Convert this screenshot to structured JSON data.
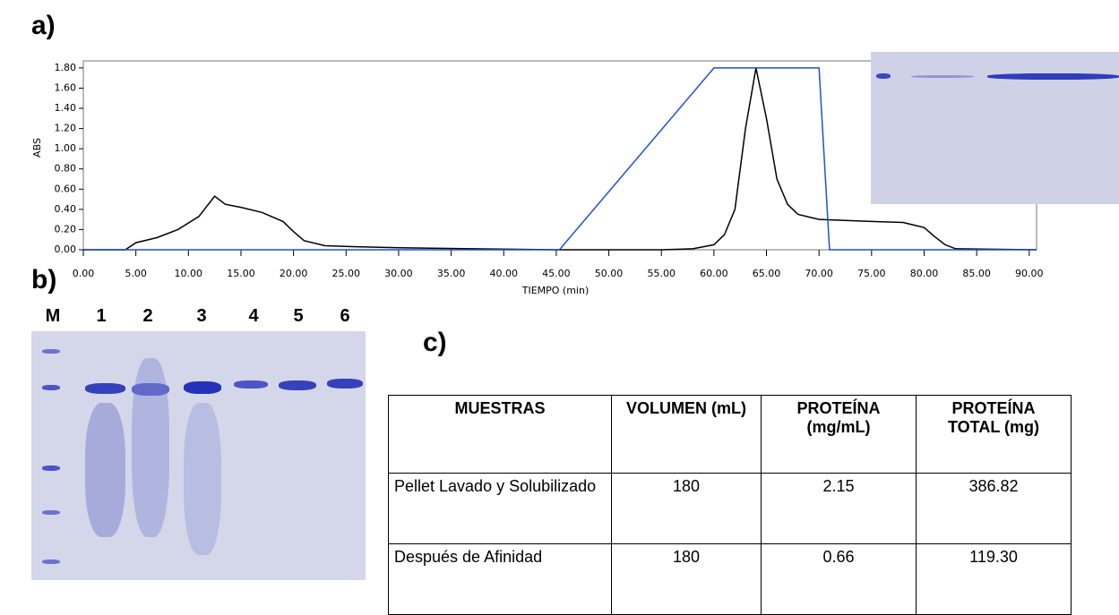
{
  "panels": {
    "a": "a)",
    "b": "b)",
    "c": "c)"
  },
  "chart_data": {
    "type": "line",
    "x_label": "TIEMPO (min)",
    "y_label": "ABS",
    "series": [
      {
        "color": "#000000",
        "x": [
          0,
          4,
          5,
          7,
          9,
          11,
          12.5,
          13.5,
          15,
          17,
          19,
          20,
          21,
          23,
          26,
          30,
          37,
          45,
          55,
          58,
          60,
          61,
          62,
          63,
          64,
          65,
          66,
          67,
          68,
          70,
          75,
          78,
          80,
          81,
          82,
          83,
          90.7
        ],
        "values": [
          0,
          0,
          0.07,
          0.12,
          0.2,
          0.33,
          0.53,
          0.45,
          0.42,
          0.37,
          0.28,
          0.18,
          0.09,
          0.04,
          0.03,
          0.02,
          0.01,
          0,
          0,
          0.01,
          0.05,
          0.15,
          0.4,
          1.2,
          1.8,
          1.3,
          0.7,
          0.45,
          0.35,
          0.3,
          0.28,
          0.27,
          0.22,
          0.13,
          0.05,
          0.01,
          0
        ]
      },
      {
        "color": "#1f4fd8",
        "x": [
          0,
          45.3,
          60,
          70,
          71,
          90.7
        ],
        "values": [
          0,
          0,
          1.8,
          1.8,
          0,
          0
        ]
      }
    ],
    "xlim": [
      0,
      90.7
    ],
    "ylim": [
      0,
      1.87
    ],
    "xticks": [
      {
        "value": 0,
        "label": "0.00"
      },
      {
        "value": 5,
        "label": "5.00"
      },
      {
        "value": 10,
        "label": "10.00"
      },
      {
        "value": 15,
        "label": "15.00"
      },
      {
        "value": 20,
        "label": "20.00"
      },
      {
        "value": 25,
        "label": "25.00"
      },
      {
        "value": 30,
        "label": "30.00"
      },
      {
        "value": 35,
        "label": "35.00"
      },
      {
        "value": 40,
        "label": "40.00"
      },
      {
        "value": 45,
        "label": "45.00"
      },
      {
        "value": 50,
        "label": "50.00"
      },
      {
        "value": 55,
        "label": "55.00"
      },
      {
        "value": 60,
        "label": "60.00"
      },
      {
        "value": 65,
        "label": "65.00"
      },
      {
        "value": 70,
        "label": "70.00"
      },
      {
        "value": 75,
        "label": "75.00"
      },
      {
        "value": 80,
        "label": "80.00"
      },
      {
        "value": 85,
        "label": "85.00"
      },
      {
        "value": 90,
        "label": "90.00"
      }
    ],
    "yticks": [
      {
        "value": 0,
        "label": "0.00"
      },
      {
        "value": 0.2,
        "label": "0.20"
      },
      {
        "value": 0.4,
        "label": "0.40"
      },
      {
        "value": 0.6,
        "label": "0.60"
      },
      {
        "value": 0.8,
        "label": "0.80"
      },
      {
        "value": 1,
        "label": "1.00"
      },
      {
        "value": 1.2,
        "label": "1.20"
      },
      {
        "value": 1.4,
        "label": "1.40"
      },
      {
        "value": 1.6,
        "label": "1.60"
      },
      {
        "value": 1.8,
        "label": "1.80"
      }
    ]
  },
  "gel": {
    "lanes": [
      "M",
      "1",
      "2",
      "3",
      "4",
      "5",
      "6"
    ]
  },
  "table": {
    "header": [
      "MUESTRAS",
      "VOLUMEN (mL)",
      "PROTEÍNA (mg/mL)",
      "PROTEÍNA TOTAL (mg)"
    ],
    "rows": [
      [
        "Pellet  Lavado y Solubilizado",
        "180",
        "2.15",
        "386.82"
      ],
      [
        "Después de Afinidad",
        "180",
        "0.66",
        "119.30"
      ]
    ]
  }
}
